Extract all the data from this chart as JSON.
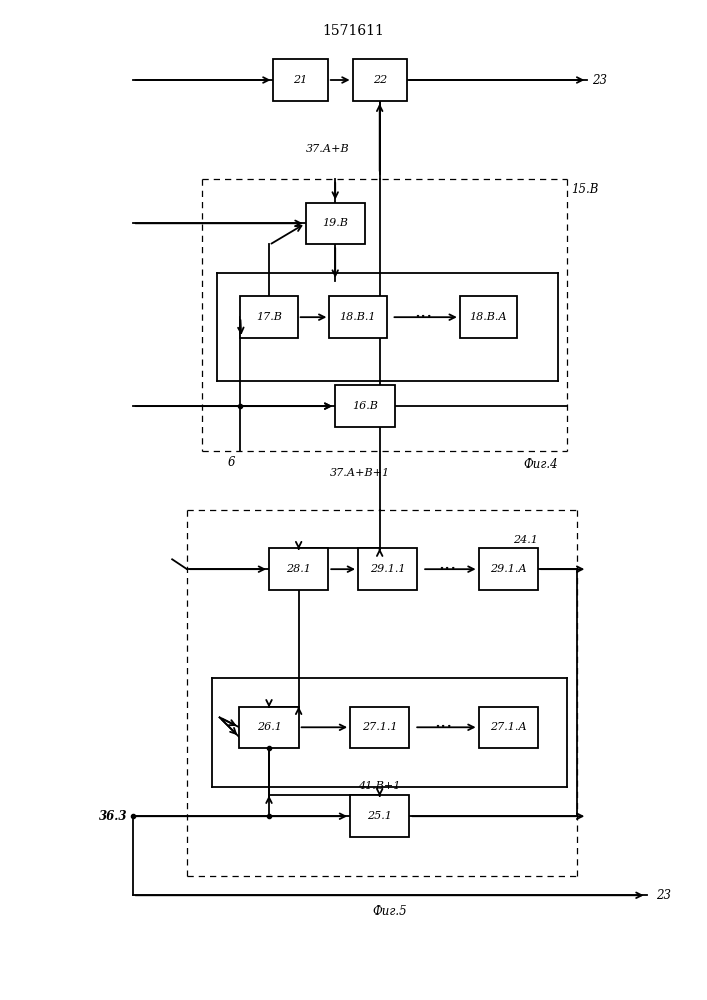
{
  "title": "1571611",
  "bg": "#ffffff",
  "fig4_label": "Фиг.4",
  "fig5_label": "Фиг.5",
  "label_15B": "15.В",
  "label_6": "6",
  "label_37AB": "37.А+В",
  "label_37AB1": "37.А+В+1",
  "label_41B1": "41.В+1",
  "label_36_3": "36.3",
  "label_23": "23",
  "label_24_1": "24.1"
}
